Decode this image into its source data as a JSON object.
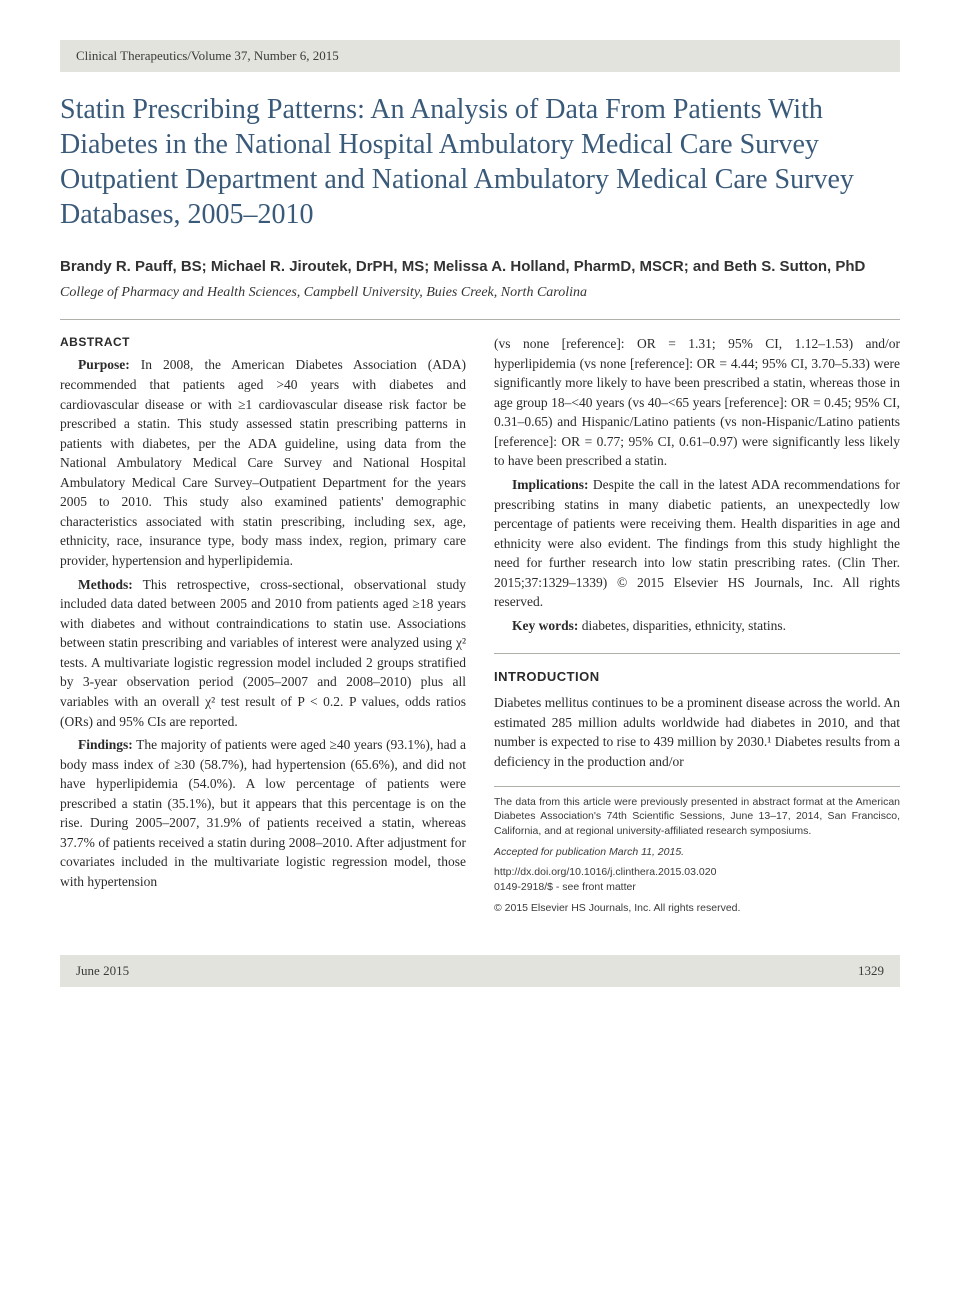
{
  "header": {
    "journal_line": "Clinical Therapeutics/Volume 37, Number 6, 2015"
  },
  "title": "Statin Prescribing Patterns: An Analysis of Data From Patients With Diabetes in the National Hospital Ambulatory Medical Care Survey Outpatient Department and National Ambulatory Medical Care Survey Databases, 2005–2010",
  "authors": "Brandy R. Pauff, BS; Michael R. Jiroutek, DrPH, MS; Melissa A. Holland, PharmD, MSCR; and Beth S. Sutton, PhD",
  "affiliation": "College of Pharmacy and Health Sciences, Campbell University, Buies Creek, North Carolina",
  "abstract": {
    "heading": "ABSTRACT",
    "purpose_label": "Purpose:",
    "purpose": " In 2008, the American Diabetes Association (ADA) recommended that patients aged >40 years with diabetes and cardiovascular disease or with ≥1 cardiovascular disease risk factor be prescribed a statin. This study assessed statin prescribing patterns in patients with diabetes, per the ADA guideline, using data from the National Ambulatory Medical Care Survey and National Hospital Ambulatory Medical Care Survey–Outpatient Department for the years 2005 to 2010. This study also examined patients' demographic characteristics associated with statin prescribing, including sex, age, ethnicity, race, insurance type, body mass index, region, primary care provider, hypertension and hyperlipidemia.",
    "methods_label": "Methods:",
    "methods": " This retrospective, cross-sectional, observational study included data dated between 2005 and 2010 from patients aged ≥18 years with diabetes and without contraindications to statin use. Associations between statin prescribing and variables of interest were analyzed using χ² tests. A multivariate logistic regression model included 2 groups stratified by 3-year observation period (2005–2007 and 2008–2010) plus all variables with an overall χ² test result of P < 0.2. P values, odds ratios (ORs) and 95% CIs are reported.",
    "findings_label": "Findings:",
    "findings": " The majority of patients were aged ≥40 years (93.1%), had a body mass index of ≥30 (58.7%), had hypertension (65.6%), and did not have hyperlipidemia (54.0%). A low percentage of patients were prescribed a statin (35.1%), but it appears that this percentage is on the rise. During 2005–2007, 31.9% of patients received a statin, whereas 37.7% of patients received a statin during 2008–2010. After adjustment for covariates included in the multivariate logistic regression model, those with hypertension",
    "findings_cont": "(vs none [reference]: OR = 1.31; 95% CI, 1.12–1.53) and/or hyperlipidemia (vs none [reference]: OR = 4.44; 95% CI, 3.70–5.33) were significantly more likely to have been prescribed a statin, whereas those in age group 18–<40 years (vs 40–<65 years [reference]: OR = 0.45; 95% CI, 0.31–0.65) and Hispanic/Latino patients (vs non-Hispanic/Latino patients [reference]: OR = 0.77; 95% CI, 0.61–0.97) were significantly less likely to have been prescribed a statin.",
    "implications_label": "Implications:",
    "implications": " Despite the call in the latest ADA recommendations for prescribing statins in many diabetic patients, an unexpectedly low percentage of patients were receiving them. Health disparities in age and ethnicity were also evident. The findings from this study highlight the need for further research into low statin prescribing rates. (Clin Ther. 2015;37:1329–1339) © 2015 Elsevier HS Journals, Inc. All rights reserved.",
    "keywords_label": "Key words:",
    "keywords": " diabetes, disparities, ethnicity, statins."
  },
  "introduction": {
    "heading": "INTRODUCTION",
    "text": "Diabetes mellitus continues to be a prominent disease across the world. An estimated 285 million adults worldwide had diabetes in 2010, and that number is expected to rise to 439 million by 2030.¹ Diabetes results from a deficiency in the production and/or"
  },
  "footnotes": {
    "presented": "The data from this article were previously presented in abstract format at the American Diabetes Association's 74th Scientific Sessions, June 13–17, 2014, San Francisco, California, and at regional university-affiliated research symposiums.",
    "accepted": "Accepted for publication March 11, 2015.",
    "doi": "http://dx.doi.org/10.1016/j.clinthera.2015.03.020",
    "issn": "0149-2918/$ - see front matter",
    "copyright": "© 2015 Elsevier HS Journals, Inc. All rights reserved."
  },
  "footer": {
    "issue_date": "June 2015",
    "page_number": "1329"
  },
  "colors": {
    "title_color": "#3a5a7a",
    "bar_bg": "#e3e3dd",
    "divider": "#b0b0a8",
    "body_text": "#2a2a2a"
  }
}
